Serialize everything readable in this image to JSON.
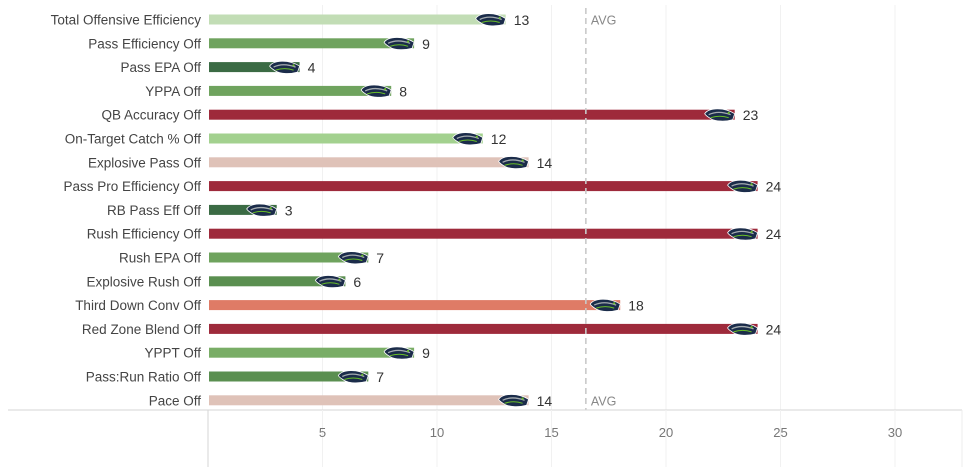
{
  "chart_data": {
    "type": "bar",
    "orientation": "horizontal",
    "categories": [
      "Total Offensive Efficiency",
      "Pass Efficiency Off",
      "Pass EPA Off",
      "YPPA Off",
      "QB Accuracy Off",
      "On-Target Catch % Off",
      "Explosive Pass Off",
      "Pass Pro Efficiency Off",
      "RB Pass Eff Off",
      "Rush Efficiency Off",
      "Rush EPA Off",
      "Explosive Rush Off",
      "Third Down Conv Off",
      "Red Zone Blend Off",
      "YPPT Off",
      "Pass:Run Ratio Off",
      "Pace Off"
    ],
    "values": [
      13,
      9,
      4,
      8,
      23,
      12,
      14,
      24,
      3,
      24,
      7,
      6,
      18,
      24,
      9,
      7,
      14
    ],
    "bar_colors": [
      "#c2ddb5",
      "#6fa35e",
      "#3b6b44",
      "#6fa35e",
      "#9e2a3b",
      "#a3d18f",
      "#dfc2b8",
      "#9e2a3b",
      "#3b6b44",
      "#9e2a3b",
      "#6fa35e",
      "#5a8f50",
      "#df7b66",
      "#9e2a3b",
      "#79ad66",
      "#5a8f50",
      "#dfc2b8"
    ],
    "x_ticks": [
      5,
      10,
      15,
      20,
      25,
      30
    ],
    "xlim": [
      0,
      32.5
    ],
    "average": {
      "value": 16.5,
      "label": "AVG"
    },
    "marker_icon": "seahawks-logo-icon",
    "grid": true
  }
}
